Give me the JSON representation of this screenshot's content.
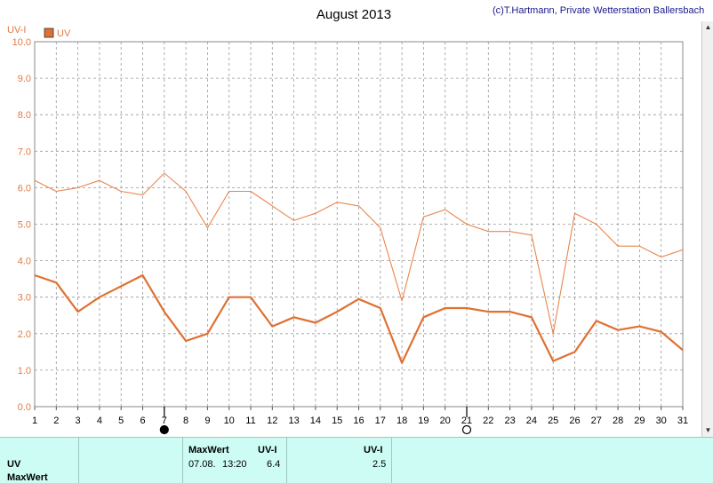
{
  "credit": "(c)T.Hartmann, Private Wetterstation Ballersbach",
  "chart_data": {
    "type": "line",
    "title": "August 2013",
    "ylabel": "UV-I",
    "x": [
      1,
      2,
      3,
      4,
      5,
      6,
      7,
      8,
      9,
      10,
      11,
      12,
      13,
      14,
      15,
      16,
      17,
      18,
      19,
      20,
      21,
      22,
      23,
      24,
      25,
      26,
      27,
      28,
      29,
      30,
      31
    ],
    "ylim": [
      0,
      10
    ],
    "yticks": [
      "0.0",
      "1.0",
      "2.0",
      "3.0",
      "4.0",
      "5.0",
      "6.0",
      "7.0",
      "8.0",
      "9.0",
      "10.0"
    ],
    "grid": true,
    "legend": "top-left",
    "series": [
      {
        "name": "UV",
        "role": "max",
        "color": "#e8864c",
        "values": [
          6.2,
          5.9,
          6.0,
          6.2,
          5.9,
          5.8,
          6.4,
          5.9,
          4.9,
          5.9,
          5.9,
          5.5,
          5.1,
          5.3,
          5.6,
          5.5,
          4.9,
          2.9,
          5.2,
          5.4,
          5.0,
          4.8,
          4.8,
          4.7,
          2.0,
          5.3,
          5.0,
          4.4,
          4.4,
          4.1,
          4.3
        ]
      },
      {
        "name": "",
        "role": "mean",
        "color": "#e07030",
        "values": [
          3.6,
          3.4,
          2.6,
          3.0,
          3.3,
          3.6,
          2.6,
          1.8,
          2.0,
          3.0,
          3.0,
          2.2,
          2.45,
          2.3,
          2.6,
          2.95,
          2.7,
          1.2,
          2.45,
          2.7,
          2.7,
          2.6,
          2.6,
          2.45,
          1.25,
          1.5,
          2.35,
          2.1,
          2.2,
          2.05,
          1.55
        ]
      }
    ],
    "moon_markers": [
      {
        "day": 7,
        "phase": "new-moon"
      },
      {
        "day": 21,
        "phase": "full-moon"
      }
    ]
  },
  "table": {
    "row_labels": [
      "UV",
      "MaxWert"
    ],
    "maxwert_header": "MaxWert",
    "unit_header_1": "UV-I",
    "max_date": "07.08.",
    "max_time": "13:20",
    "max_value": "6.4",
    "unit_header_2": "UV-I",
    "mean_value": "2.5"
  }
}
